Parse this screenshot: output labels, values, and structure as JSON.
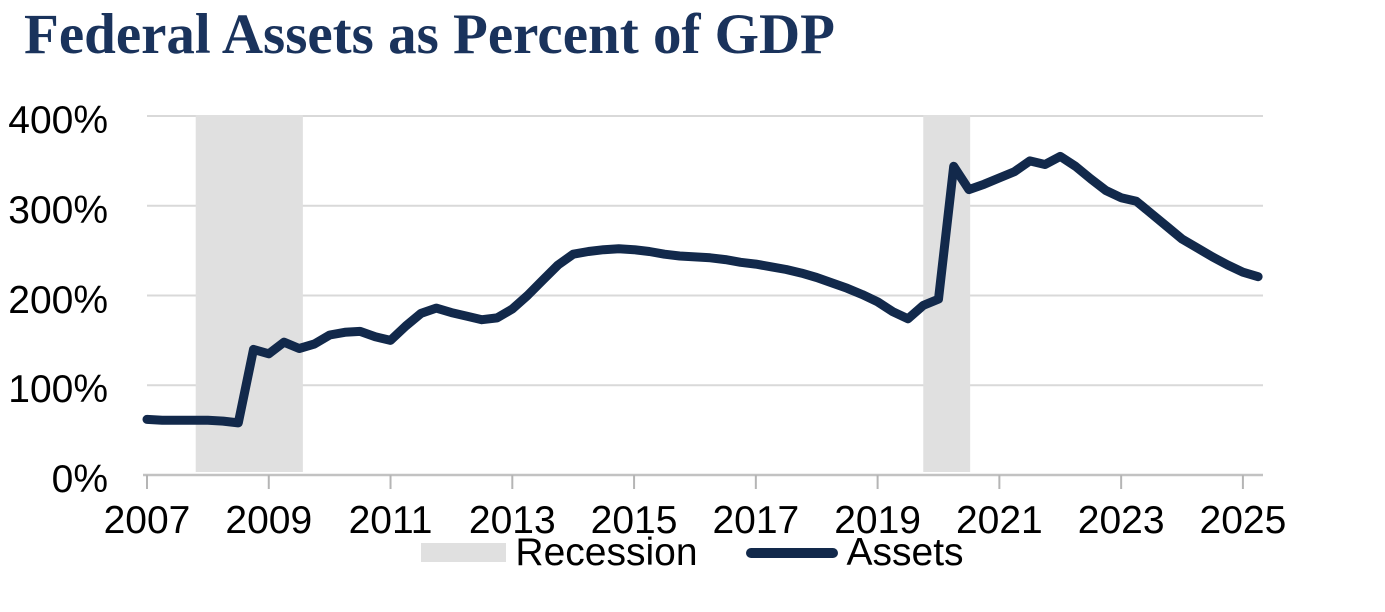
{
  "chart": {
    "title": "Federal Assets as Percent of GDP"
  },
  "chart_data": {
    "type": "line",
    "title": "Federal Assets as Percent of GDP",
    "xlabel": "",
    "ylabel": "",
    "xlim": [
      2007,
      2025.33
    ],
    "ylim": [
      0,
      400
    ],
    "grid": "horizontal",
    "legend_position": "bottom-center",
    "xticks": [
      2007,
      2009,
      2011,
      2013,
      2015,
      2017,
      2019,
      2021,
      2023,
      2025
    ],
    "xtick_labels": [
      "2007",
      "2009",
      "2011",
      "2013",
      "2015",
      "2017",
      "2019",
      "2021",
      "2023",
      "2025"
    ],
    "ytick_values": [
      0,
      100,
      200,
      300,
      400
    ],
    "ytick_labels": [
      "0%",
      "100%",
      "200%",
      "300%",
      "400%"
    ],
    "recession_bands": [
      [
        2007.8,
        2009.56
      ],
      [
        2019.75,
        2020.52
      ]
    ],
    "series": [
      {
        "name": "Assets",
        "unit": "percent of GDP",
        "frequency": "quarterly",
        "x_start": 2007.0,
        "x_step": 0.25,
        "values": [
          62,
          61,
          61,
          61,
          61,
          60,
          58,
          140,
          135,
          148,
          141,
          146,
          156,
          159,
          160,
          154,
          150,
          166,
          180,
          186,
          181,
          177,
          173,
          175,
          185,
          200,
          217,
          234,
          246,
          249,
          251,
          252,
          251,
          249,
          246,
          244,
          243,
          242,
          240,
          237,
          235,
          232,
          229,
          225,
          220,
          214,
          208,
          201,
          193,
          182,
          174,
          189,
          196,
          344,
          318,
          324,
          331,
          338,
          350,
          346,
          355,
          344,
          330,
          317,
          309,
          305,
          291,
          277,
          263,
          253,
          243,
          234,
          226,
          221
        ]
      }
    ],
    "legend": [
      {
        "label": "Recession",
        "type": "area",
        "color": "#e0e0e0"
      },
      {
        "label": "Assets",
        "type": "line",
        "color": "#12294b"
      }
    ],
    "colors": {
      "line": "#12294b",
      "recession_band": "#e0e0e0",
      "gridline": "#d9d9d9",
      "axis_line": "#c2c2c2",
      "tick": "#b5b5b5",
      "title": "#1a335c",
      "axis_text": "#000000",
      "background": "#ffffff"
    }
  }
}
